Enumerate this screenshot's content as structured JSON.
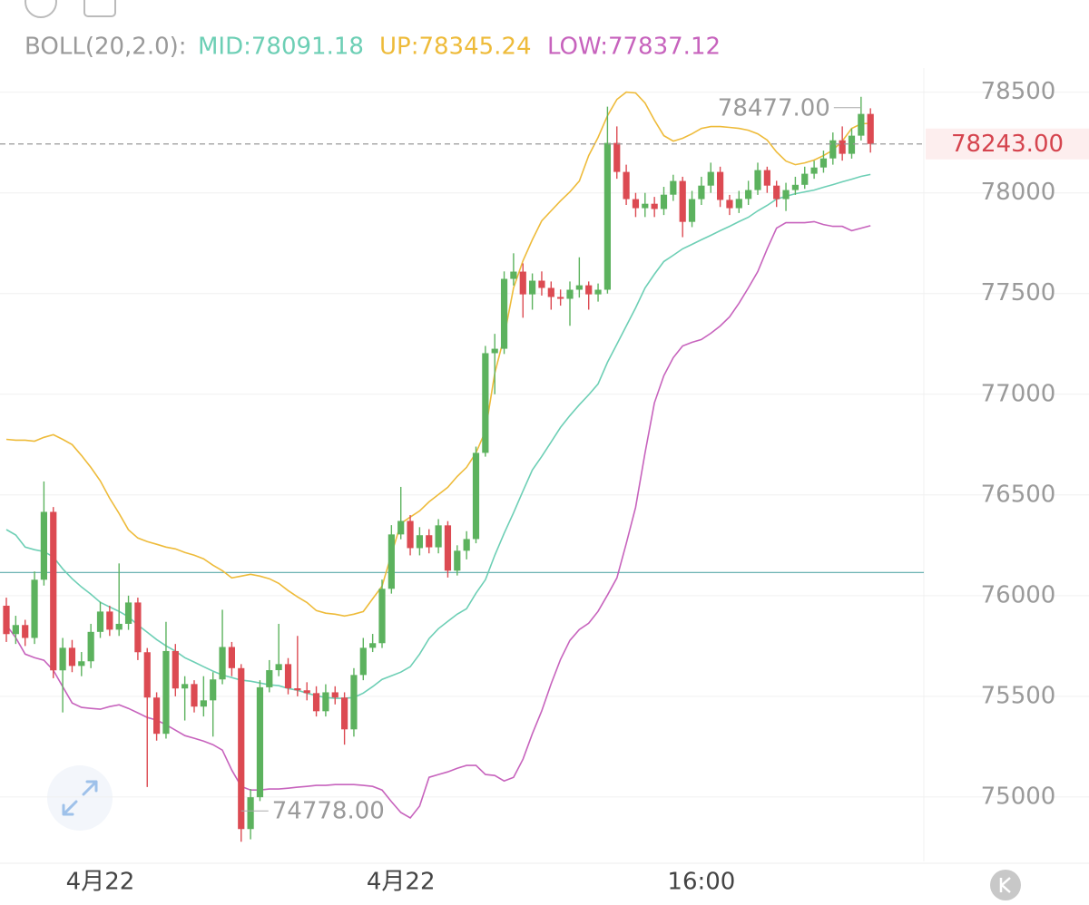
{
  "chart_data": {
    "type": "candlestick",
    "indicator": "BOLL(20,2.0):",
    "categories": [
      null,
      null,
      null,
      null,
      null,
      null,
      null,
      null,
      null,
      null,
      "4月22",
      null,
      null,
      null,
      null,
      null,
      null,
      null,
      null,
      null,
      null,
      null,
      null,
      null,
      null,
      null,
      null,
      null,
      null,
      null,
      null,
      null,
      null,
      null,
      null,
      null,
      null,
      null,
      null,
      null,
      null,
      null,
      "4月22",
      null,
      null,
      null,
      null,
      null,
      null,
      null,
      null,
      null,
      null,
      null,
      null,
      null,
      null,
      null,
      null,
      null,
      null,
      null,
      null,
      null,
      null,
      null,
      null,
      null,
      null,
      null,
      null,
      null,
      null,
      null,
      "16:00",
      null,
      null,
      null,
      null,
      null,
      null,
      null,
      null,
      null,
      null,
      null,
      null,
      null,
      null,
      null,
      null,
      null,
      null
    ],
    "open": [
      75950,
      75809,
      75854,
      75790,
      76079,
      76416,
      75629,
      75741,
      75651,
      75674,
      75820,
      75921,
      75831,
      75860,
      75966,
      75719,
      75494,
      75314,
      75725,
      75539,
      75561,
      75449,
      75480,
      75584,
      75745,
      75640,
      74841,
      74999,
      75545,
      75630,
      75660,
      75540,
      75530,
      75516,
      75426,
      75520,
      75494,
      75336,
      75606,
      75741,
      75764,
      76034,
      76304,
      76371,
      76236,
      76300,
      76240,
      76349,
      76124,
      76223,
      76281,
      76709,
      77204,
      77226,
      77573,
      77609,
      77496,
      77564,
      77528,
      77483,
      77474,
      77519,
      77541,
      77496,
      77519,
      78248,
      78104,
      77969,
      77924,
      77946,
      77920,
      77991,
      78059,
      77856,
      77969,
      78036,
      78104,
      77965,
      77924,
      77970,
      78014,
      78113,
      78036,
      77969,
      78014,
      78040,
      78095,
      78126,
      78171,
      78261,
      78194,
      78284,
      78392
    ],
    "high": [
      75990,
      75900,
      75880,
      76120,
      76567,
      76440,
      75790,
      75780,
      75720,
      75860,
      75970,
      75950,
      76160,
      76000,
      75990,
      75740,
      75520,
      75870,
      75760,
      75600,
      75580,
      75600,
      75620,
      75930,
      75770,
      75660,
      75040,
      75580,
      75680,
      75860,
      75690,
      75800,
      75570,
      75550,
      75560,
      75550,
      75520,
      75640,
      75790,
      75810,
      76080,
      76350,
      76540,
      76400,
      76340,
      76330,
      76380,
      76370,
      76250,
      76320,
      76740,
      77240,
      77300,
      77610,
      77700,
      77650,
      77600,
      77610,
      77560,
      77520,
      77560,
      77680,
      77560,
      77550,
      78428,
      78330,
      78140,
      78000,
      78000,
      77980,
      78030,
      78090,
      78080,
      78010,
      78080,
      78150,
      78130,
      77990,
      78010,
      78060,
      78150,
      78130,
      78060,
      78050,
      78080,
      78130,
      78160,
      78210,
      78300,
      78330,
      78320,
      78477,
      78420
    ],
    "low": [
      75770,
      75760,
      75750,
      75760,
      76050,
      75590,
      75420,
      75620,
      75600,
      75640,
      75790,
      75800,
      75800,
      75830,
      75680,
      75050,
      75280,
      75290,
      75500,
      75380,
      75420,
      75400,
      75300,
      75560,
      75600,
      74778,
      74790,
      74980,
      75520,
      75600,
      75510,
      75500,
      75480,
      75400,
      75400,
      75460,
      75260,
      75300,
      75580,
      75720,
      75740,
      76010,
      76280,
      76200,
      76200,
      76210,
      76210,
      76090,
      76100,
      76180,
      76260,
      76690,
      77000,
      77200,
      77540,
      77380,
      77420,
      77490,
      77420,
      77440,
      77340,
      77480,
      77420,
      77460,
      77500,
      78070,
      77940,
      77880,
      77880,
      77880,
      77890,
      77960,
      77780,
      77830,
      77940,
      78000,
      77930,
      77890,
      77900,
      77940,
      77990,
      78000,
      77930,
      77910,
      77990,
      78020,
      78070,
      78100,
      78140,
      78160,
      78170,
      78260,
      78200
    ],
    "close": [
      75809,
      75854,
      75790,
      76079,
      76416,
      75629,
      75741,
      75651,
      75674,
      75820,
      75921,
      75831,
      75860,
      75966,
      75719,
      75494,
      75314,
      75725,
      75539,
      75561,
      75449,
      75480,
      75584,
      75745,
      75640,
      74841,
      74999,
      75545,
      75630,
      75660,
      75540,
      75530,
      75516,
      75426,
      75520,
      75494,
      75336,
      75606,
      75741,
      75764,
      76034,
      76304,
      76371,
      76236,
      76300,
      76240,
      76349,
      76124,
      76223,
      76281,
      76709,
      77204,
      77226,
      77573,
      77609,
      77496,
      77564,
      77528,
      77483,
      77474,
      77519,
      77541,
      77496,
      77519,
      78248,
      78104,
      77969,
      77924,
      77946,
      77920,
      77991,
      78059,
      77856,
      77969,
      78036,
      78104,
      77965,
      77924,
      77970,
      78014,
      78113,
      78036,
      77969,
      78014,
      78040,
      78095,
      78126,
      78171,
      78261,
      78194,
      78284,
      78392,
      78243
    ],
    "up_color": "#5cb25e",
    "down_color": "#dc4a52",
    "series": [
      {
        "name": "MID:78091.18",
        "color": "#6dcfb5",
        "values": [
          76328,
          76301,
          76241,
          76228,
          76219,
          76192,
          76133,
          76084,
          76043,
          76007,
          75967,
          75944,
          75922,
          75895,
          75854,
          75818,
          75782,
          75751,
          75724,
          75692,
          75670,
          75647,
          75625,
          75606,
          75593,
          75580,
          75575,
          75566,
          75557,
          75553,
          75539,
          75530,
          75516,
          75503,
          75494,
          75490,
          75490,
          75494,
          75516,
          75548,
          75584,
          75602,
          75620,
          75647,
          75710,
          75787,
          75836,
          75872,
          75908,
          75935,
          76012,
          76079,
          76200,
          76309,
          76412,
          76520,
          76624,
          76691,
          76763,
          76835,
          76894,
          76948,
          76997,
          77051,
          77159,
          77249,
          77339,
          77429,
          77528,
          77596,
          77659,
          77690,
          77722,
          77744,
          77767,
          77789,
          77812,
          77834,
          77857,
          77879,
          77911,
          77938,
          77969,
          77983,
          77996,
          78005,
          78014,
          78028,
          78041,
          78055,
          78068,
          78082,
          78091.18
        ]
      },
      {
        "name": "UP:78345.24",
        "color": "#eebb3a",
        "values": [
          76776,
          76772,
          76772,
          76767,
          76786,
          76799,
          76776,
          76750,
          76696,
          76637,
          76570,
          76484,
          76408,
          76327,
          76286,
          76268,
          76255,
          76241,
          76232,
          76214,
          76201,
          76183,
          76151,
          76124,
          76088,
          76097,
          76106,
          76097,
          76084,
          76061,
          76025,
          75994,
          75966,
          75926,
          75913,
          75908,
          75899,
          75908,
          75921,
          75984,
          76047,
          76205,
          76358,
          76390,
          76421,
          76466,
          76502,
          76538,
          76592,
          76637,
          76709,
          76817,
          77105,
          77285,
          77528,
          77663,
          77767,
          77861,
          77911,
          77960,
          78005,
          78059,
          78185,
          78275,
          78383,
          78464,
          78500,
          78496,
          78446,
          78361,
          78284,
          78257,
          78271,
          78293,
          78320,
          78329,
          78329,
          78325,
          78320,
          78311,
          78293,
          78262,
          78203,
          78158,
          78140,
          78149,
          78163,
          78185,
          78212,
          78257,
          78320,
          78343,
          78345.24
        ]
      },
      {
        "name": "LOW:77837.12",
        "color": "#c763bd",
        "values": [
          75854,
          75791,
          75710,
          75692,
          75679,
          75629,
          75548,
          75467,
          75445,
          75440,
          75436,
          75449,
          75458,
          75440,
          75418,
          75395,
          75382,
          75359,
          75332,
          75305,
          75292,
          75278,
          75260,
          75233,
          75134,
          75053,
          75035,
          75035,
          75040,
          75040,
          75044,
          75049,
          75053,
          75058,
          75058,
          75062,
          75062,
          75062,
          75058,
          75053,
          75035,
          74977,
          74923,
          74896,
          74955,
          75098,
          75112,
          75125,
          75143,
          75157,
          75157,
          75112,
          75107,
          75080,
          75098,
          75188,
          75314,
          75427,
          75562,
          75683,
          75778,
          75832,
          75863,
          75922,
          76003,
          76088,
          76259,
          76439,
          76709,
          76957,
          77092,
          77182,
          77240,
          77258,
          77272,
          77303,
          77339,
          77384,
          77452,
          77528,
          77609,
          77722,
          77825,
          77852,
          77852,
          77852,
          77857,
          77843,
          77834,
          77834,
          77812,
          77825,
          77837.12
        ]
      }
    ],
    "reference_line": {
      "value": 76115,
      "color": "#5aa9aa"
    },
    "last_price": {
      "value": 78243,
      "label": "78243.00",
      "color": "#d5444e"
    },
    "annotations": [
      {
        "index": 91,
        "value": 78477,
        "label": "78477.00"
      },
      {
        "index": 25,
        "value": 74778,
        "label": "74778.00"
      }
    ],
    "ylim": [
      74680,
      78620
    ],
    "yticks": [
      75000,
      75500,
      76000,
      76500,
      77000,
      77500,
      78000,
      78500
    ],
    "grid": true
  }
}
